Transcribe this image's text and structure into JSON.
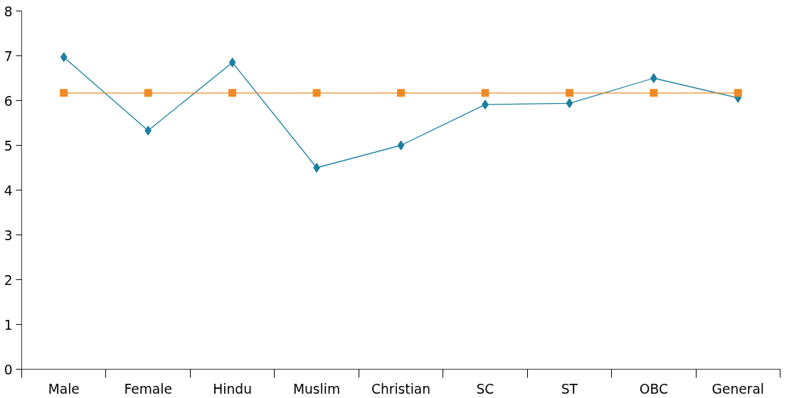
{
  "chart_data": {
    "type": "line",
    "categories": [
      "Male",
      "Female",
      "Hindu",
      "Muslim",
      "Christian",
      "SC",
      "ST",
      "OBC",
      "General"
    ],
    "series": [
      {
        "color": "#1a7fa0",
        "marker": "diamond",
        "values": [
          6.97,
          5.33,
          6.85,
          4.5,
          5.0,
          5.91,
          5.94,
          6.5,
          6.06
        ]
      },
      {
        "color": "#f08a24",
        "marker": "square",
        "values": [
          6.17,
          6.17,
          6.17,
          6.17,
          6.17,
          6.17,
          6.17,
          6.17,
          6.17
        ]
      }
    ],
    "ylim": [
      0,
      8
    ],
    "yticks": [
      0,
      1,
      2,
      3,
      4,
      5,
      6,
      7,
      8
    ],
    "grid": false
  }
}
